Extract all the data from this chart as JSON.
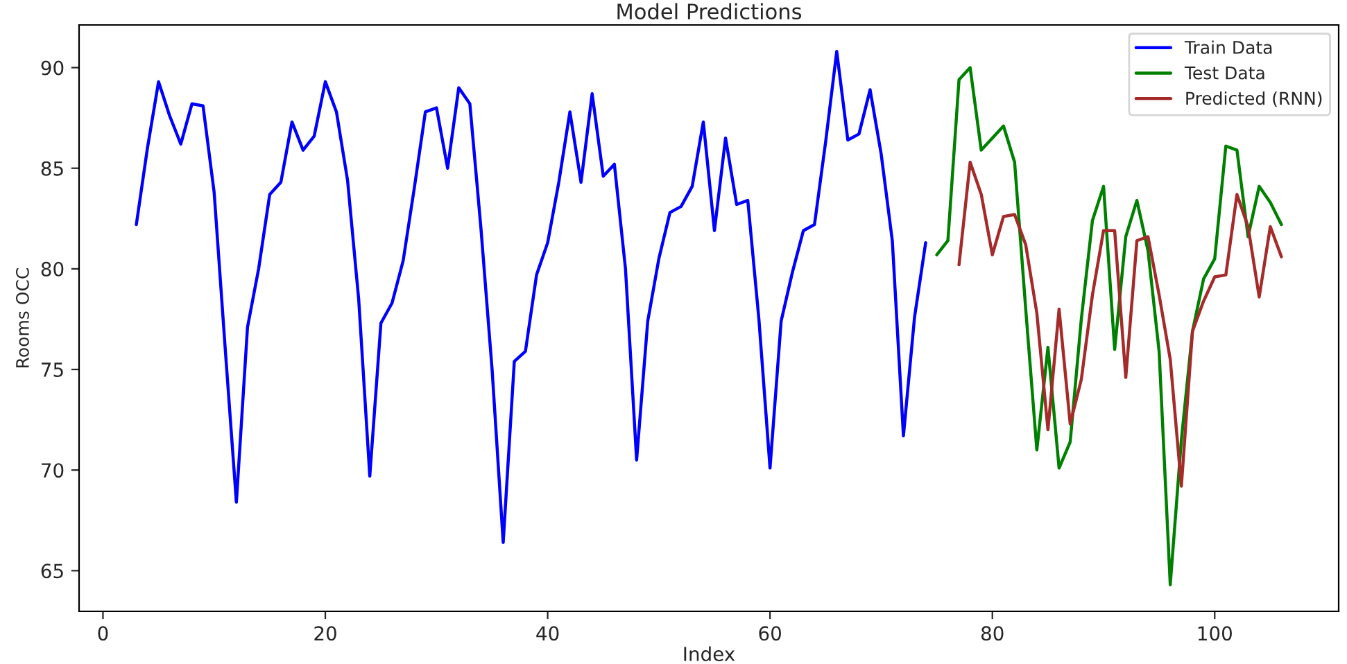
{
  "chart_data": {
    "type": "line",
    "title": "Model Predictions",
    "xlabel": "Index",
    "ylabel": "Rooms OCC",
    "xlim": [
      -2.15,
      111.15
    ],
    "xticks": [
      0,
      20,
      40,
      60,
      80,
      100
    ],
    "ylim": [
      62.98,
      92.12
    ],
    "yticks": [
      65,
      70,
      75,
      80,
      85,
      90
    ],
    "grid": false,
    "legend": "top right",
    "series": [
      {
        "name": "Train Data",
        "color": "#0000ff",
        "x": [
          3,
          4,
          5,
          6,
          7,
          8,
          9,
          10,
          11,
          12,
          13,
          14,
          15,
          16,
          17,
          18,
          19,
          20,
          21,
          22,
          23,
          24,
          25,
          26,
          27,
          28,
          29,
          30,
          31,
          32,
          33,
          34,
          35,
          36,
          37,
          38,
          39,
          40,
          41,
          42,
          43,
          44,
          45,
          46,
          47,
          48,
          49,
          50,
          51,
          52,
          53,
          54,
          55,
          56,
          57,
          58,
          59,
          60,
          61,
          62,
          63,
          64,
          65,
          66,
          67,
          68,
          69,
          70,
          71,
          72,
          73,
          74
        ],
        "values": [
          82.2,
          86.0,
          89.3,
          87.6,
          86.2,
          88.2,
          88.1,
          83.8,
          76.0,
          68.4,
          77.1,
          80.0,
          83.7,
          84.3,
          87.3,
          85.9,
          86.6,
          89.3,
          87.8,
          84.4,
          78.5,
          69.7,
          77.3,
          78.3,
          80.4,
          84.0,
          87.8,
          88.0,
          85.0,
          89.0,
          88.2,
          82.0,
          75.0,
          66.4,
          75.4,
          75.9,
          79.7,
          81.3,
          84.3,
          87.8,
          84.3,
          88.7,
          84.6,
          85.2,
          80.0,
          70.5,
          77.4,
          80.5,
          82.8,
          83.1,
          84.1,
          87.3,
          81.9,
          86.5,
          83.2,
          83.4,
          77.5,
          70.1,
          77.4,
          79.8,
          81.9,
          82.2,
          86.3,
          90.8,
          86.4,
          86.7,
          88.9,
          85.7,
          81.4,
          71.7,
          77.6,
          81.3
        ]
      },
      {
        "name": "Test Data",
        "color": "#008000",
        "x": [
          75,
          76,
          77,
          78,
          79,
          80,
          81,
          82,
          83,
          84,
          85,
          86,
          87,
          88,
          89,
          90,
          91,
          92,
          93,
          94,
          95,
          96,
          97,
          98,
          99,
          100,
          101,
          102,
          103,
          104,
          105,
          106
        ],
        "values": [
          80.7,
          81.4,
          89.4,
          90.0,
          85.9,
          86.5,
          87.1,
          85.3,
          78.0,
          71.0,
          76.1,
          70.1,
          71.4,
          77.5,
          82.4,
          84.1,
          76.0,
          81.6,
          83.4,
          80.9,
          75.9,
          64.3,
          71.5,
          76.9,
          79.5,
          80.5,
          86.1,
          85.9,
          81.6,
          84.1,
          83.3,
          82.2
        ]
      },
      {
        "name": "Predicted (RNN)",
        "color": "#a52a2a",
        "x": [
          77,
          78,
          79,
          80,
          81,
          82,
          83,
          84,
          85,
          86,
          87,
          88,
          89,
          90,
          91,
          92,
          93,
          94,
          95,
          96,
          97,
          98,
          99,
          100,
          101,
          102,
          103,
          104,
          105,
          106
        ],
        "values": [
          80.2,
          85.3,
          83.7,
          80.7,
          82.6,
          82.7,
          81.2,
          77.8,
          72.0,
          78.0,
          72.3,
          74.5,
          78.7,
          81.9,
          81.9,
          74.6,
          81.4,
          81.6,
          78.7,
          75.5,
          69.2,
          76.9,
          78.4,
          79.6,
          79.7,
          83.7,
          82.1,
          78.6,
          82.1,
          80.6
        ]
      }
    ]
  }
}
